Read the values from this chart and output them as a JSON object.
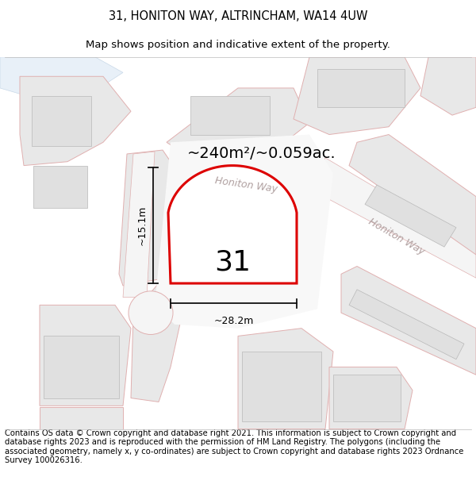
{
  "title_line1": "31, HONITON WAY, ALTRINCHAM, WA14 4UW",
  "title_line2": "Map shows position and indicative extent of the property.",
  "area_text": "~240m²/~0.059ac.",
  "number_label": "31",
  "dim_width": "~28.2m",
  "dim_height": "~15.1m",
  "road_label1": "Honiton Way",
  "road_label2": "Honiton Way",
  "footer_text": "Contains OS data © Crown copyright and database right 2021. This information is subject to Crown copyright and database rights 2023 and is reproduced with the permission of HM Land Registry. The polygons (including the associated geometry, namely x, y co-ordinates) are subject to Crown copyright and database rights 2023 Ordnance Survey 100026316.",
  "map_bg": "#f7f7f7",
  "plot_color": "#dd0000",
  "building_fill": "#e8e8e8",
  "building_edge": "#e0b0b0",
  "road_fill": "#f0f0f0",
  "road_edge": "#e0b0b0",
  "title_fontsize": 10.5,
  "subtitle_fontsize": 9.5,
  "footer_fontsize": 7.2,
  "area_fontsize": 14,
  "number_fontsize": 26,
  "road_label_color": "#b0a0a0",
  "dim_line_color": "#111111"
}
